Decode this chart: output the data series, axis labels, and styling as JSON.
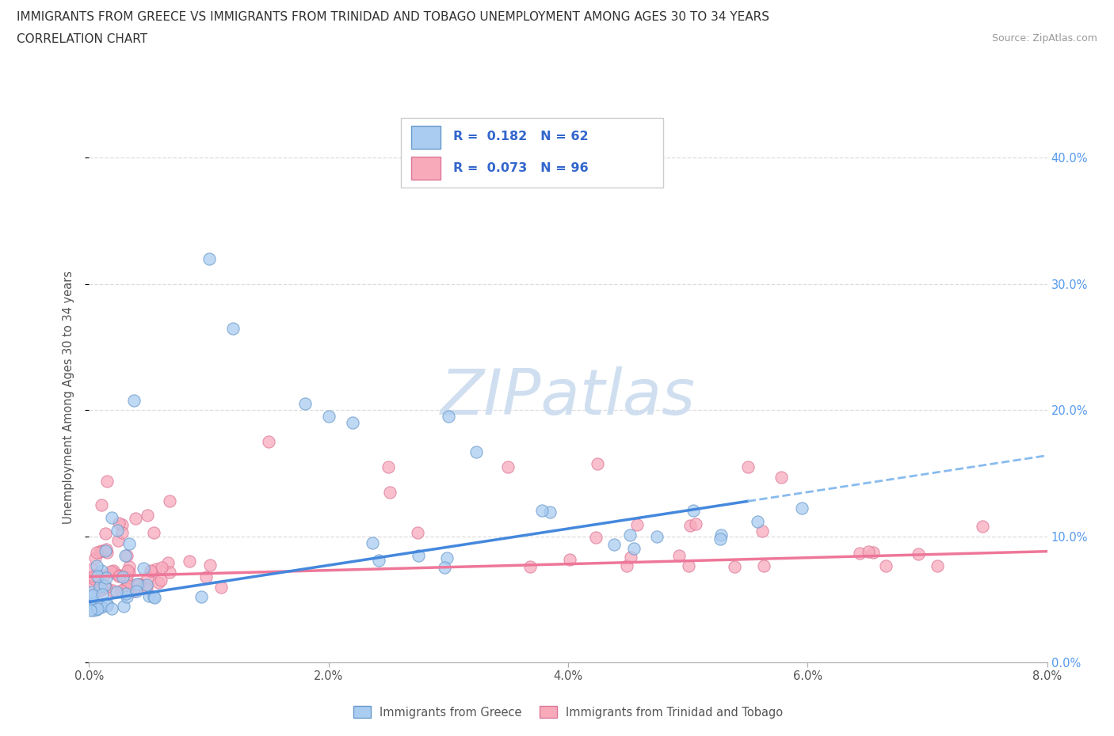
{
  "title_line1": "IMMIGRANTS FROM GREECE VS IMMIGRANTS FROM TRINIDAD AND TOBAGO UNEMPLOYMENT AMONG AGES 30 TO 34 YEARS",
  "title_line2": "CORRELATION CHART",
  "source_text": "Source: ZipAtlas.com",
  "ylabel": "Unemployment Among Ages 30 to 34 years",
  "xlim": [
    0.0,
    0.08
  ],
  "ylim": [
    0.0,
    0.42
  ],
  "xticks": [
    0.0,
    0.02,
    0.04,
    0.06,
    0.08
  ],
  "xtick_labels": [
    "0.0%",
    "2.0%",
    "4.0%",
    "6.0%",
    "8.0%"
  ],
  "ytick_positions": [
    0.0,
    0.1,
    0.2,
    0.3,
    0.4
  ],
  "ytick_labels_right": [
    "0.0%",
    "10.0%",
    "20.0%",
    "30.0%",
    "40.0%"
  ],
  "greece_color": "#aaccf0",
  "greece_edge_color": "#6699cc",
  "tt_color": "#f8aabb",
  "tt_edge_color": "#dd7799",
  "greece_line_color": "#4488dd",
  "greece_line_color_dash": "#88bbee",
  "tt_line_color": "#ee7799",
  "greece_R": 0.182,
  "greece_N": 62,
  "tt_R": 0.073,
  "tt_N": 96,
  "watermark": "ZIPatlas",
  "legend_label_greece": "Immigrants from Greece",
  "legend_label_tt": "Immigrants from Trinidad and Tobago",
  "tick_color": "#5599ee",
  "axis_color": "#aaaaaa",
  "grid_color": "#dddddd"
}
